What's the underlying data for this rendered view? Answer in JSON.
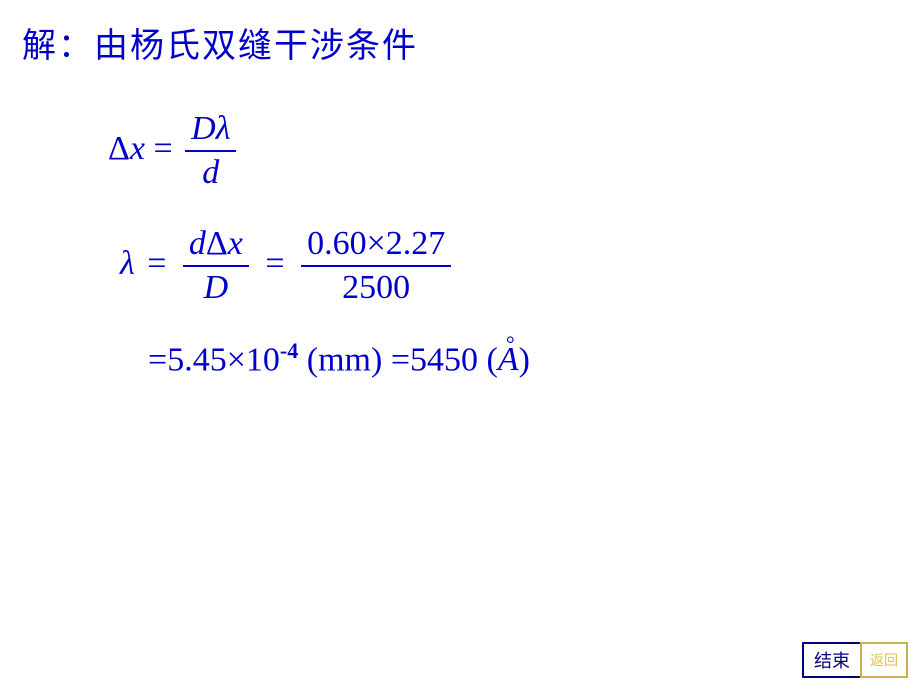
{
  "heading": "解：由杨氏双缝干涉条件",
  "eq1": {
    "lhs_delta": "Δ",
    "lhs_x": "x",
    "eq": "=",
    "num_D": "D",
    "num_lambda": "λ",
    "den_d": "d"
  },
  "eq2": {
    "lambda": "λ",
    "eq1": "=",
    "f1_num_d": "d",
    "f1_num_delta": "Δ",
    "f1_num_x": "x",
    "f1_den_D": "D",
    "eq2": "=",
    "f2_num": "0.60×2.27",
    "f2_den": "2500"
  },
  "eq3": {
    "eq1": "=",
    "val1": "5.45×10",
    "exp1": "-4",
    "unit1_open": " (",
    "unit1": "mm",
    "unit1_close": ") ",
    "eq2": "=",
    "val2": "5450 (",
    "A": "A",
    "close2": ")"
  },
  "nav": {
    "end": "结束",
    "back": "返回"
  },
  "colors": {
    "text": "#0000c8",
    "bg": "#ffffff",
    "nav_end": "#000080",
    "nav_back": "#e0c040"
  }
}
